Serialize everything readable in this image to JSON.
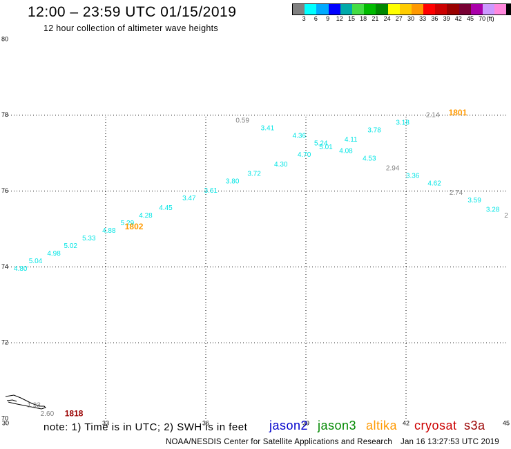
{
  "header": {
    "title": "12:00 – 23:59 UTC 01/15/2019",
    "subtitle": "12 hour collection of altimeter wave heights"
  },
  "colorbar": {
    "colors": [
      "#808080",
      "#00ffff",
      "#00aaff",
      "#0000ff",
      "#00aaaa",
      "#44dd44",
      "#00bb00",
      "#008800",
      "#ffff00",
      "#ffcc00",
      "#ff9900",
      "#ff0000",
      "#cc0000",
      "#990000",
      "#770033",
      "#aa00aa",
      "#cc99ff",
      "#ff88dd",
      "#000000"
    ],
    "labels": [
      "3",
      "6",
      "9",
      "12",
      "15",
      "18",
      "21",
      "24",
      "27",
      "30",
      "33",
      "36",
      "39",
      "42",
      "45",
      "70"
    ],
    "unit": "(ft)"
  },
  "missions": [
    {
      "name": "jason2",
      "color": "#0000cc"
    },
    {
      "name": "jason3",
      "color": "#008800"
    },
    {
      "name": "altika",
      "color": "#ff9900"
    },
    {
      "name": "cryosat",
      "color": "#cc0000"
    },
    {
      "name": "s3a",
      "color": "#990000"
    }
  ],
  "footer": {
    "note": "note: 1) Time is in UTC; 2) SWH is in feet",
    "credit": "NOAA/NESDIS Center for Satellite Applications and Research",
    "timestamp": "Jan 16 13:27:53 UTC 2019"
  },
  "chart_data": {
    "type": "scatter",
    "xlim": [
      30,
      45
    ],
    "ylim": [
      70,
      80
    ],
    "x_ticks": [
      30,
      33,
      36,
      39,
      42,
      45
    ],
    "y_ticks": [
      70,
      72,
      74,
      76,
      78,
      80
    ],
    "grid": "dotted",
    "points": [
      {
        "x": 30.45,
        "y": 73.95,
        "label": "4.80",
        "color": "#00e5e5"
      },
      {
        "x": 30.9,
        "y": 74.15,
        "label": "5.04",
        "color": "#00e5e5"
      },
      {
        "x": 31.45,
        "y": 74.35,
        "label": "4.98",
        "color": "#00e5e5"
      },
      {
        "x": 31.95,
        "y": 74.55,
        "label": "5.02",
        "color": "#00e5e5"
      },
      {
        "x": 32.5,
        "y": 74.75,
        "label": "5.33",
        "color": "#00e5e5"
      },
      {
        "x": 33.1,
        "y": 74.95,
        "label": "4.88",
        "color": "#00e5e5"
      },
      {
        "x": 33.65,
        "y": 75.15,
        "label": "5.29",
        "color": "#00e5e5"
      },
      {
        "x": 34.2,
        "y": 75.35,
        "label": "4.28",
        "color": "#00e5e5"
      },
      {
        "x": 34.8,
        "y": 75.55,
        "label": "4.45",
        "color": "#00e5e5"
      },
      {
        "x": 35.5,
        "y": 75.8,
        "label": "3.47",
        "color": "#00e5e5"
      },
      {
        "x": 36.15,
        "y": 76.0,
        "label": "3.61",
        "color": "#00e5e5"
      },
      {
        "x": 36.8,
        "y": 76.25,
        "label": "3.80",
        "color": "#00e5e5"
      },
      {
        "x": 37.45,
        "y": 76.45,
        "label": "3.72",
        "color": "#00e5e5"
      },
      {
        "x": 38.25,
        "y": 76.7,
        "label": "4.30",
        "color": "#00e5e5"
      },
      {
        "x": 38.95,
        "y": 76.95,
        "label": "4.70",
        "color": "#00e5e5"
      },
      {
        "x": 39.6,
        "y": 77.15,
        "label": "5.01",
        "color": "#00e5e5"
      },
      {
        "x": 40.2,
        "y": 77.05,
        "label": "4.08",
        "color": "#00e5e5"
      },
      {
        "x": 40.9,
        "y": 76.85,
        "label": "4.53",
        "color": "#00e5e5"
      },
      {
        "x": 41.6,
        "y": 76.6,
        "label": "2.94",
        "color": "#808080"
      },
      {
        "x": 42.2,
        "y": 76.4,
        "label": "3.36",
        "color": "#00e5e5"
      },
      {
        "x": 42.85,
        "y": 76.2,
        "label": "4.62",
        "color": "#00e5e5"
      },
      {
        "x": 43.5,
        "y": 75.95,
        "label": "2.74",
        "color": "#808080"
      },
      {
        "x": 44.05,
        "y": 75.75,
        "label": "3.59",
        "color": "#00e5e5"
      },
      {
        "x": 44.6,
        "y": 75.5,
        "label": "3.28",
        "color": "#00e5e5"
      },
      {
        "x": 45.0,
        "y": 75.35,
        "label": "2",
        "color": "#808080"
      },
      {
        "x": 37.1,
        "y": 77.85,
        "label": "0.59",
        "color": "#808080"
      },
      {
        "x": 37.85,
        "y": 77.65,
        "label": "3.41",
        "color": "#00e5e5"
      },
      {
        "x": 38.8,
        "y": 77.45,
        "label": "4.36",
        "color": "#00e5e5"
      },
      {
        "x": 39.45,
        "y": 77.25,
        "label": "5.24",
        "color": "#00e5e5"
      },
      {
        "x": 40.35,
        "y": 77.35,
        "label": "4.11",
        "color": "#00e5e5"
      },
      {
        "x": 41.05,
        "y": 77.6,
        "label": "3.78",
        "color": "#00e5e5"
      },
      {
        "x": 41.9,
        "y": 77.8,
        "label": "3.18",
        "color": "#00e5e5"
      },
      {
        "x": 42.8,
        "y": 78.0,
        "label": "2.14",
        "color": "#808080"
      },
      {
        "x": 30.85,
        "y": 70.35,
        "label": "1.93",
        "color": "#808080"
      },
      {
        "x": 31.25,
        "y": 70.12,
        "label": "2.60",
        "color": "#808080"
      }
    ],
    "annotations": [
      {
        "x": 33.85,
        "y": 75.05,
        "text": "1802",
        "color": "#ff9900"
      },
      {
        "x": 43.55,
        "y": 78.05,
        "text": "1801",
        "color": "#ff9900"
      },
      {
        "x": 32.05,
        "y": 70.12,
        "text": "1818",
        "color": "#990000"
      }
    ]
  }
}
